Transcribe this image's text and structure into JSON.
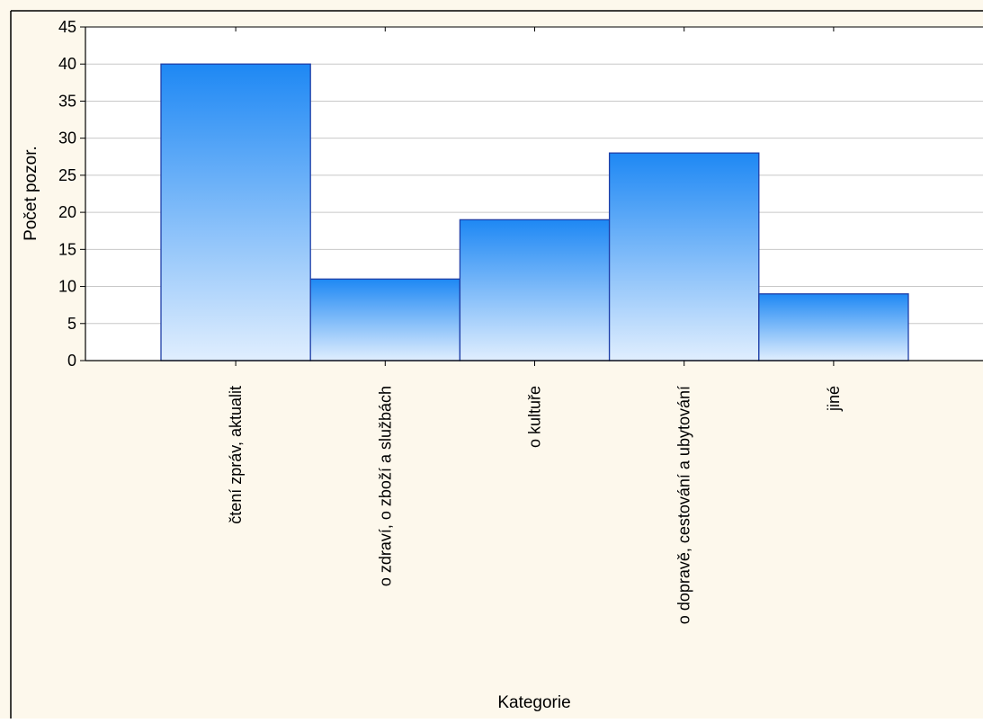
{
  "chart_data": {
    "type": "bar",
    "categories": [
      "čtení zpráv, aktualit",
      "o zdraví, o zboží a službách",
      "o kultuře",
      "o dopravě, cestování a ubytování",
      "jiné"
    ],
    "values": [
      40,
      11,
      19,
      28,
      9
    ],
    "title": "",
    "xlabel": "Kategorie",
    "ylabel": "Počet pozor.",
    "ylim": [
      0,
      45
    ],
    "yticks": [
      "0",
      "5",
      "10",
      "15",
      "20",
      "25",
      "30",
      "35",
      "40",
      "45"
    ],
    "grid": true,
    "colors": {
      "background": "#FDF8EC",
      "plot_background": "#FFFFFF",
      "bar_top": "#1E88F4",
      "bar_bottom": "#E0EEFE",
      "bar_stroke": "#1F3FA8",
      "grid": "#C8C8C8"
    }
  }
}
